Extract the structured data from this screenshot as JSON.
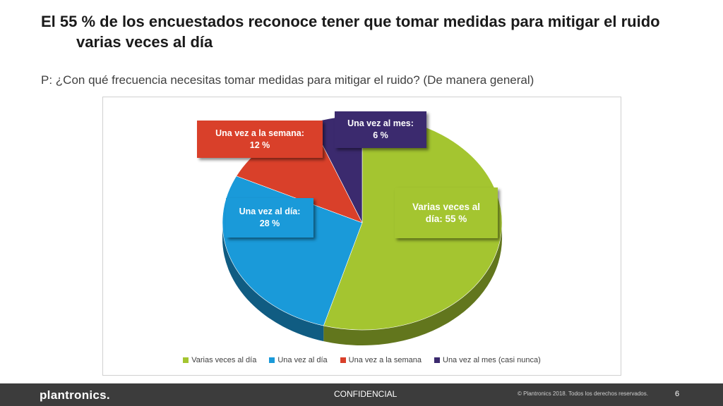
{
  "header": {
    "title_line1": "El 55 % de los encuestados reconoce tener que tomar medidas para mitigar el ruido",
    "title_line2": "varias veces al día",
    "subtitle": "P: ¿Con qué frecuencia necesitas tomar medidas para mitigar el ruido? (De manera general)"
  },
  "chart_data": {
    "type": "pie",
    "categories": [
      "Varias veces al día",
      "Una vez al día",
      "Una vez a la semana",
      "Una vez al mes (casi nunca)"
    ],
    "values": [
      55,
      28,
      12,
      6
    ],
    "unit": "%",
    "legend_position": "bottom",
    "colors": [
      "#a4c530",
      "#1a9ad9",
      "#d9402a",
      "#3b2a6e"
    ],
    "data_labels": [
      {
        "line1": "Varias veces al",
        "line2": "día: 55 %"
      },
      {
        "line1": "Una vez al día:",
        "line2": "28 %"
      },
      {
        "line1": "Una vez a la semana:",
        "line2": "12 %"
      },
      {
        "line1": "Una vez al mes:",
        "line2": "6 %"
      }
    ]
  },
  "footer": {
    "brand": "plantronics.",
    "confidential": "CONFIDENCIAL",
    "copyright": "© Plantronics 2018. Todos los derechos reservados.",
    "page_number": "6"
  }
}
